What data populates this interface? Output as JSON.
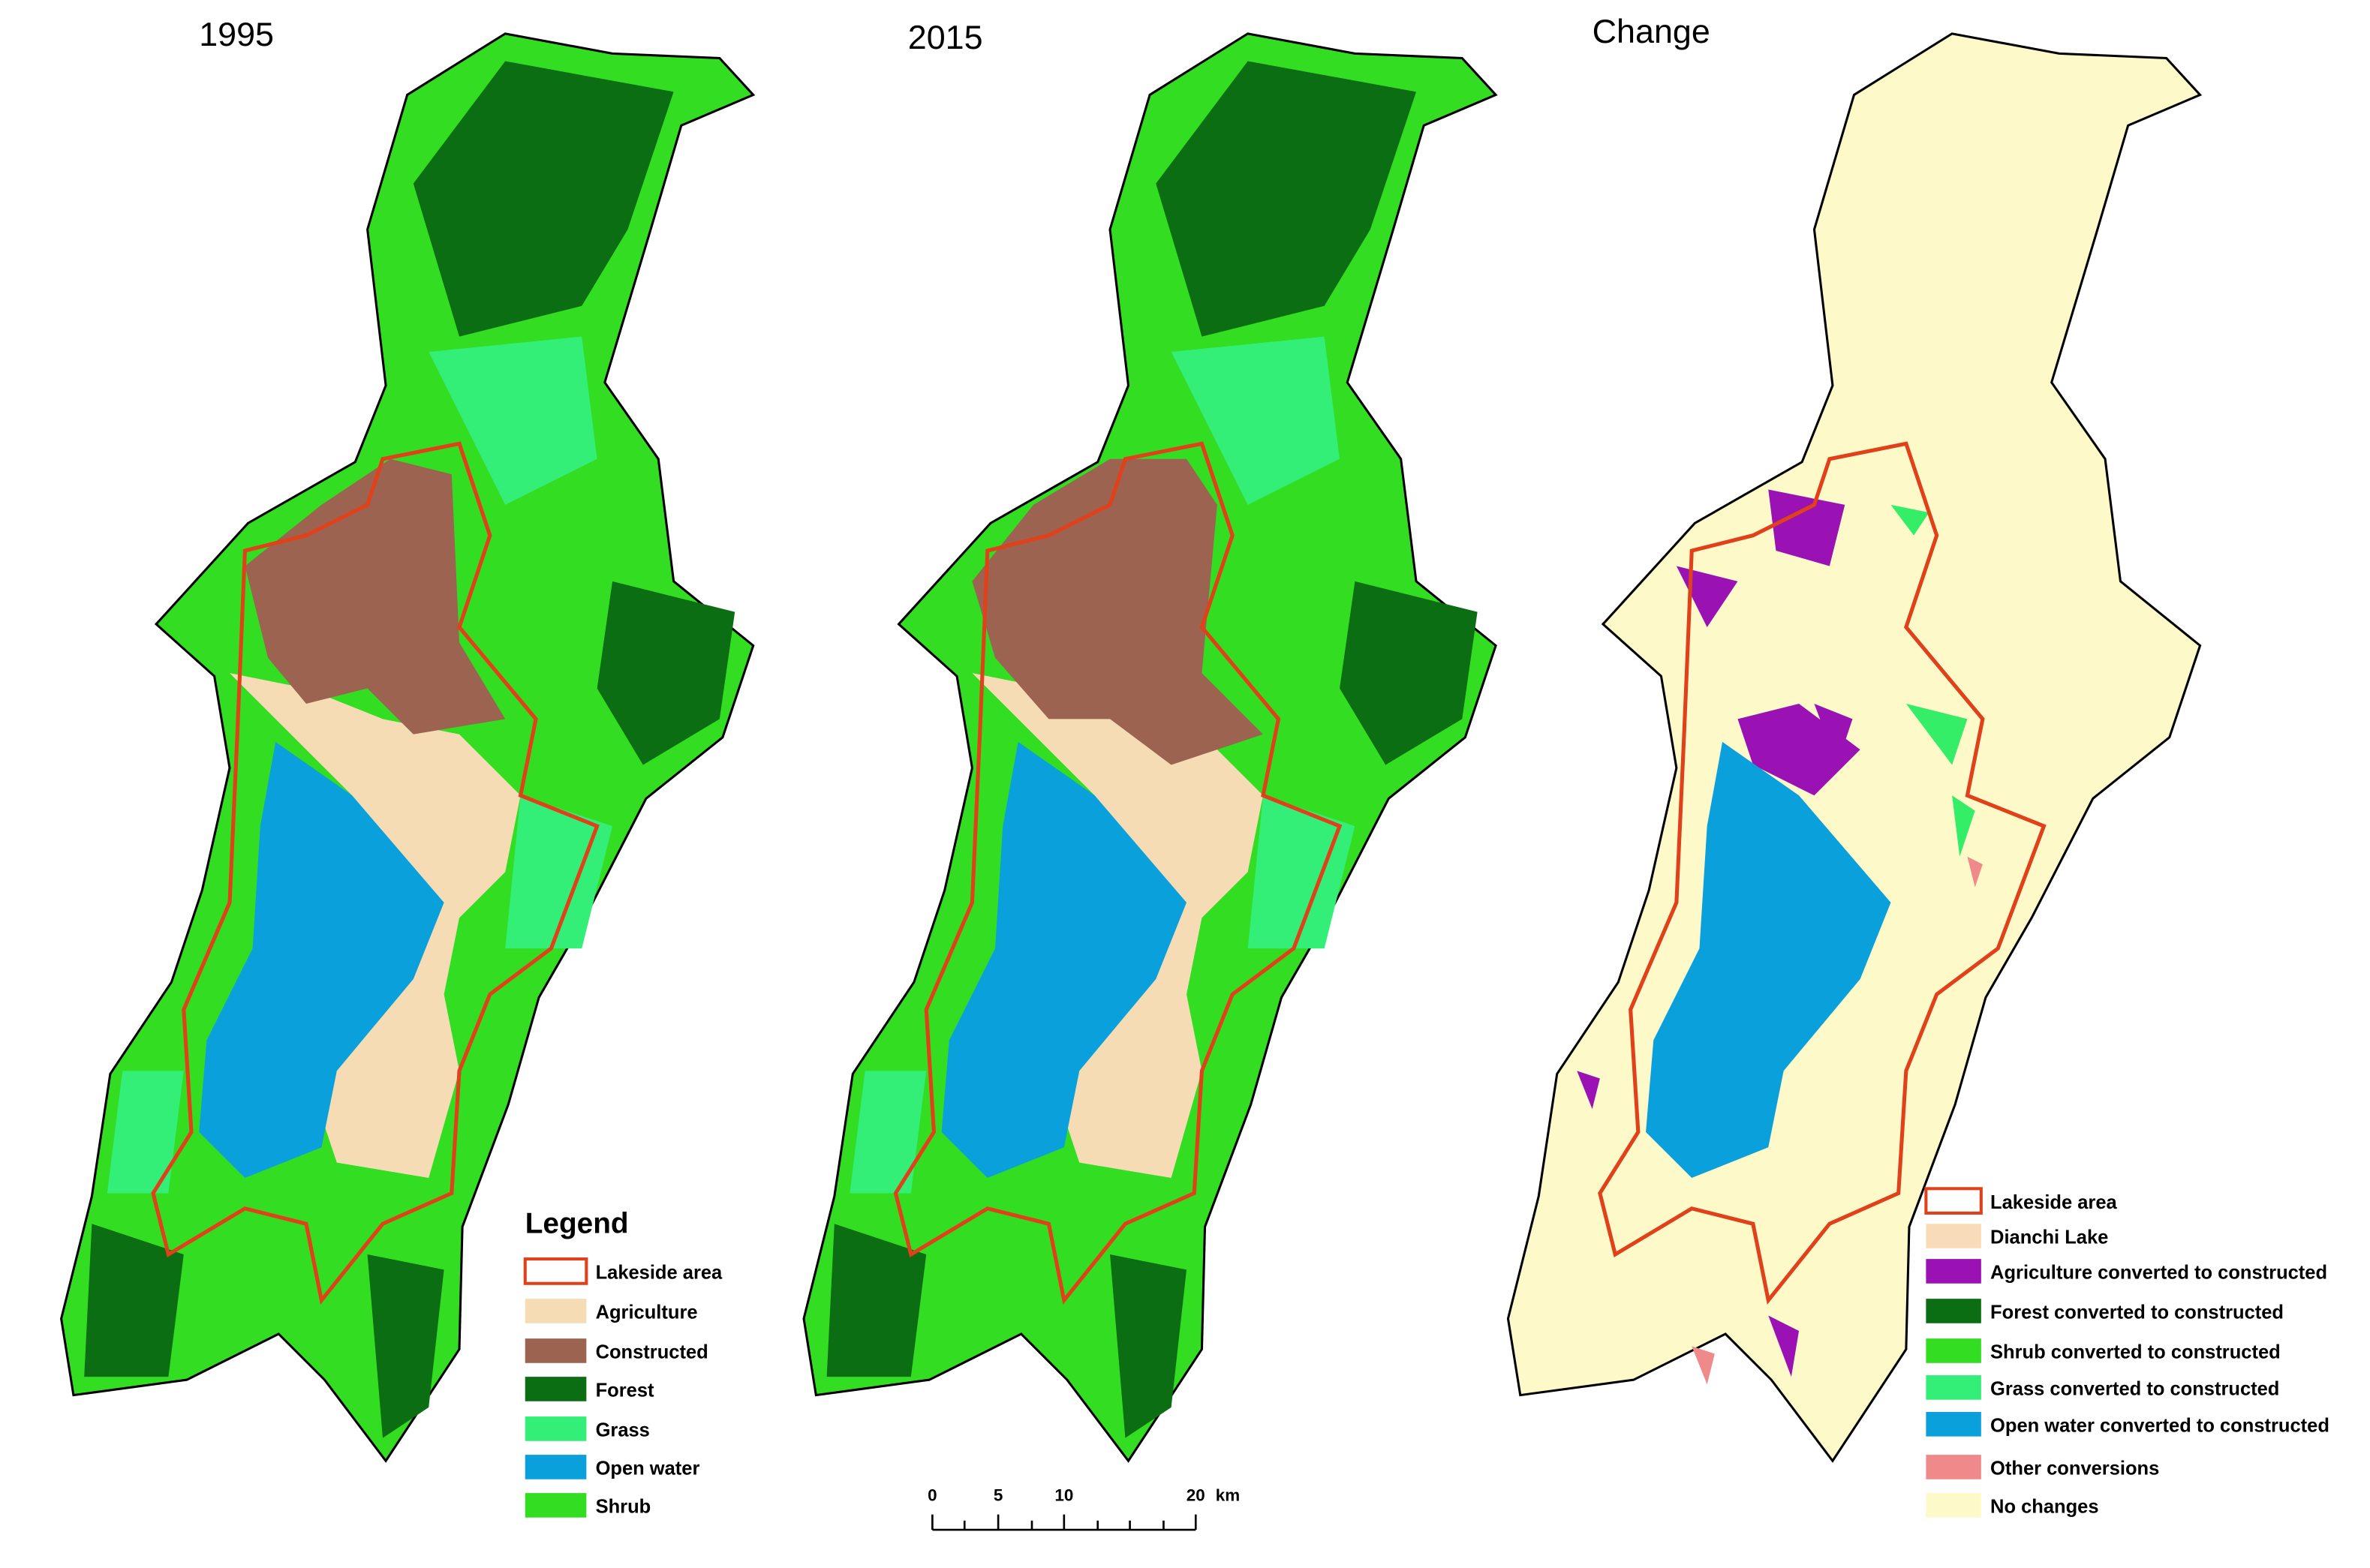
{
  "maps": [
    {
      "title": "1995"
    },
    {
      "title": "2015"
    },
    {
      "title": "Change"
    }
  ],
  "legend_1": {
    "title": "Legend",
    "items": [
      "Lakeside area",
      "Agriculture",
      "Constructed",
      "Forest",
      "Grass",
      "Open water",
      "Shrub"
    ]
  },
  "legend_2": {
    "items": [
      "Lakeside area",
      "Dianchi Lake",
      "Agriculture converted to constructed",
      "Forest converted to constructed",
      "Shrub converted to constructed",
      "Grass converted to constructed",
      "Open water converted to constructed",
      "Other conversions",
      "No changes"
    ]
  },
  "scale_bar": {
    "labels": [
      "0",
      "5",
      "10",
      "20"
    ],
    "unit": "km"
  }
}
